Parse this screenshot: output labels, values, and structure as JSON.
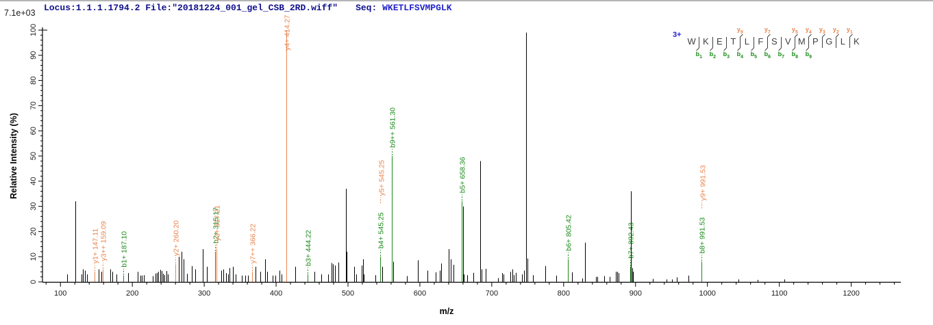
{
  "header": {
    "locus_file": "Locus:1.1.1.1794.2 File:\"20181224_001_gel_CSB_2RD.wiff\"",
    "seq_label": "Seq: ",
    "sequence": "WKETLFSVMPGLK",
    "intensity_scale": "7.1e+03"
  },
  "colors": {
    "y_ion": "#e8864f",
    "b_ion": "#1b8a1b",
    "peak": "#000000",
    "axis": "#000000",
    "header_navy": "#10108c",
    "seq_blue": "#2424cc",
    "charge_blue": "#2020d0"
  },
  "peptide_diagram": {
    "charge": "3+",
    "residues": [
      "W",
      "K",
      "E",
      "T",
      "L",
      "F",
      "S",
      "V",
      "M",
      "P",
      "G",
      "L",
      "K"
    ],
    "y_ions": [
      {
        "boundary": 4,
        "ion": "y9"
      },
      {
        "boundary": 6,
        "ion": "y7"
      },
      {
        "boundary": 8,
        "ion": "y5"
      },
      {
        "boundary": 9,
        "ion": "y4"
      },
      {
        "boundary": 10,
        "ion": "y3"
      },
      {
        "boundary": 11,
        "ion": "y2"
      },
      {
        "boundary": 12,
        "ion": "y1"
      }
    ],
    "b_ions": [
      {
        "boundary": 1,
        "ion": "b1"
      },
      {
        "boundary": 2,
        "ion": "b2"
      },
      {
        "boundary": 3,
        "ion": "b3"
      },
      {
        "boundary": 4,
        "ion": "b4"
      },
      {
        "boundary": 5,
        "ion": "b5"
      },
      {
        "boundary": 6,
        "ion": "b6"
      },
      {
        "boundary": 7,
        "ion": "b7"
      },
      {
        "boundary": 8,
        "ion": "b8"
      },
      {
        "boundary": 9,
        "ion": "b9"
      }
    ]
  },
  "chart_data": {
    "type": "bar",
    "subtype": "ms2-stick-spectrum",
    "xlabel": "m/z",
    "ylabel": "Relative  Intensity  (%)",
    "xlim": [
      75,
      1269
    ],
    "ylim": [
      0,
      100
    ],
    "x_major_ticks": [
      100,
      200,
      300,
      400,
      500,
      600,
      700,
      800,
      900,
      1000,
      1100,
      1200
    ],
    "x_minor_step": 20,
    "y_major_ticks": [
      0,
      10,
      20,
      30,
      40,
      50,
      60,
      70,
      80,
      90,
      100
    ],
    "y_minor_step": 2,
    "peaks": [
      {
        "mz": 109,
        "i": 3
      },
      {
        "mz": 120.3,
        "i": 32
      },
      {
        "mz": 129,
        "i": 3
      },
      {
        "mz": 131.5,
        "i": 5
      },
      {
        "mz": 134,
        "i": 4.5
      },
      {
        "mz": 136.5,
        "i": 3
      },
      {
        "mz": 147.11,
        "i": 4,
        "ion": "y",
        "label": "y1+ 147.11"
      },
      {
        "mz": 153.5,
        "i": 5
      },
      {
        "mz": 156.5,
        "i": 4
      },
      {
        "mz": 159.09,
        "i": 5,
        "ion": "y",
        "label": "y3++ 159.09"
      },
      {
        "mz": 169.5,
        "i": 5
      },
      {
        "mz": 172,
        "i": 4
      },
      {
        "mz": 178,
        "i": 3
      },
      {
        "mz": 187.1,
        "i": 2.5,
        "ion": "b",
        "label": "b1+ 187.10"
      },
      {
        "mz": 194,
        "i": 3.5
      },
      {
        "mz": 207.5,
        "i": 4
      },
      {
        "mz": 211.5,
        "i": 2.5
      },
      {
        "mz": 213.5,
        "i": 2.5
      },
      {
        "mz": 216,
        "i": 2.7
      },
      {
        "mz": 228,
        "i": 2.3
      },
      {
        "mz": 232,
        "i": 3.3
      },
      {
        "mz": 234.5,
        "i": 3.6
      },
      {
        "mz": 236.5,
        "i": 4
      },
      {
        "mz": 239,
        "i": 4.8
      },
      {
        "mz": 241,
        "i": 4.3
      },
      {
        "mz": 243,
        "i": 3.2
      },
      {
        "mz": 245,
        "i": 2.7
      },
      {
        "mz": 247.5,
        "i": 4.3
      },
      {
        "mz": 249.5,
        "i": 3
      },
      {
        "mz": 260.2,
        "i": 7,
        "ion": "y",
        "label": "y2+ 260.20"
      },
      {
        "mz": 265,
        "i": 10
      },
      {
        "mz": 268.7,
        "i": 12
      },
      {
        "mz": 271.3,
        "i": 9
      },
      {
        "mz": 276,
        "i": 3.2
      },
      {
        "mz": 283,
        "i": 6.3
      },
      {
        "mz": 287.5,
        "i": 5
      },
      {
        "mz": 298,
        "i": 13
      },
      {
        "mz": 303.5,
        "i": 6
      },
      {
        "mz": 315.17,
        "i": 12,
        "ion": "b",
        "label": "b2+ 315.17"
      },
      {
        "mz": 317.21,
        "i": 13,
        "ion": "y",
        "label": "y3+ 317.21"
      },
      {
        "mz": 323.8,
        "i": 4.5
      },
      {
        "mz": 327,
        "i": 5
      },
      {
        "mz": 330,
        "i": 3.5
      },
      {
        "mz": 333,
        "i": 3
      },
      {
        "mz": 335.5,
        "i": 5.5
      },
      {
        "mz": 340,
        "i": 6
      },
      {
        "mz": 343.8,
        "i": 3
      },
      {
        "mz": 352,
        "i": 2.5
      },
      {
        "mz": 357,
        "i": 2.5
      },
      {
        "mz": 361,
        "i": 2.5
      },
      {
        "mz": 366.22,
        "i": 4,
        "ion": "y",
        "label": "y7++ 366.22"
      },
      {
        "mz": 371.5,
        "i": 6
      },
      {
        "mz": 378,
        "i": 4
      },
      {
        "mz": 385,
        "i": 9
      },
      {
        "mz": 388,
        "i": 4
      },
      {
        "mz": 395,
        "i": 2.5
      },
      {
        "mz": 399,
        "i": 2.5
      },
      {
        "mz": 404.5,
        "i": 4.5
      },
      {
        "mz": 407.5,
        "i": 3
      },
      {
        "mz": 414.27,
        "i": 100,
        "ion": "y",
        "label": "y4+ 414.27"
      },
      {
        "mz": 426.5,
        "i": 6
      },
      {
        "mz": 444.22,
        "i": 3,
        "ion": "b",
        "label": "b3+ 444.22"
      },
      {
        "mz": 453.5,
        "i": 4
      },
      {
        "mz": 463,
        "i": 3
      },
      {
        "mz": 472.7,
        "i": 3
      },
      {
        "mz": 477,
        "i": 7.5
      },
      {
        "mz": 479.5,
        "i": 7
      },
      {
        "mz": 482,
        "i": 6.5
      },
      {
        "mz": 487,
        "i": 7.7
      },
      {
        "mz": 497.1,
        "i": 37
      },
      {
        "mz": 498.4,
        "i": 12
      },
      {
        "mz": 509,
        "i": 6
      },
      {
        "mz": 511.5,
        "i": 3
      },
      {
        "mz": 519,
        "i": 6.5
      },
      {
        "mz": 520.5,
        "i": 9
      },
      {
        "mz": 522,
        "i": 3
      },
      {
        "mz": 538.5,
        "i": 2.7
      },
      {
        "mz": 545.25,
        "i": 10,
        "ion": "b",
        "label": "b4+ 545.25",
        "label2": {
          "ion": "y",
          "text": "y5+ 545.25"
        }
      },
      {
        "mz": 547.3,
        "i": 6
      },
      {
        "mz": 561.3,
        "i": 50,
        "ion": "b",
        "label": "b9++ 561.30"
      },
      {
        "mz": 562.8,
        "i": 8
      },
      {
        "mz": 582,
        "i": 2.3
      },
      {
        "mz": 597,
        "i": 8.6
      },
      {
        "mz": 611,
        "i": 4.5
      },
      {
        "mz": 622,
        "i": 3.8
      },
      {
        "mz": 627.5,
        "i": 4.5
      },
      {
        "mz": 630,
        "i": 7.3
      },
      {
        "mz": 640,
        "i": 13
      },
      {
        "mz": 642.5,
        "i": 9
      },
      {
        "mz": 646.3,
        "i": 6.8
      },
      {
        "mz": 658.36,
        "i": 32,
        "ion": "b",
        "label": "b5+ 658.36"
      },
      {
        "mz": 659.8,
        "i": 30
      },
      {
        "mz": 661.5,
        "i": 3
      },
      {
        "mz": 665.4,
        "i": 2.7
      },
      {
        "mz": 674,
        "i": 3.6
      },
      {
        "mz": 683.8,
        "i": 48
      },
      {
        "mz": 686,
        "i": 5
      },
      {
        "mz": 691.7,
        "i": 5.2
      },
      {
        "mz": 709,
        "i": 1.5
      },
      {
        "mz": 714.5,
        "i": 3.5
      },
      {
        "mz": 716.5,
        "i": 3
      },
      {
        "mz": 725.7,
        "i": 4
      },
      {
        "mz": 728.4,
        "i": 5
      },
      {
        "mz": 730.6,
        "i": 2.7
      },
      {
        "mz": 733,
        "i": 3.6
      },
      {
        "mz": 742.5,
        "i": 3
      },
      {
        "mz": 744.8,
        "i": 4.5
      },
      {
        "mz": 747.6,
        "i": 99
      },
      {
        "mz": 749.6,
        "i": 9.3
      },
      {
        "mz": 757.4,
        "i": 2.7
      },
      {
        "mz": 774.9,
        "i": 6.3
      },
      {
        "mz": 790,
        "i": 2.5
      },
      {
        "mz": 805.42,
        "i": 9,
        "ion": "b",
        "label": "b6+ 805.42"
      },
      {
        "mz": 812,
        "i": 3.8
      },
      {
        "mz": 825.7,
        "i": 1.4
      },
      {
        "mz": 829.8,
        "i": 15.6
      },
      {
        "mz": 844.5,
        "i": 2
      },
      {
        "mz": 846.5,
        "i": 2
      },
      {
        "mz": 856,
        "i": 2.3
      },
      {
        "mz": 864,
        "i": 2
      },
      {
        "mz": 873,
        "i": 4
      },
      {
        "mz": 874.5,
        "i": 4
      },
      {
        "mz": 876,
        "i": 3.5
      },
      {
        "mz": 892.43,
        "i": 6,
        "ion": "b",
        "label": "b7+ 892.43"
      },
      {
        "mz": 893.8,
        "i": 36
      },
      {
        "mz": 895.3,
        "i": 5.5
      },
      {
        "mz": 896.8,
        "i": 4
      },
      {
        "mz": 924,
        "i": 1.2
      },
      {
        "mz": 943,
        "i": 1
      },
      {
        "mz": 951,
        "i": 1
      },
      {
        "mz": 957.5,
        "i": 1.8
      },
      {
        "mz": 974,
        "i": 2.5
      },
      {
        "mz": 991.53,
        "i": 8,
        "ion": "b",
        "label": "b8+ 991.53",
        "label2": {
          "ion": "y",
          "text": "y9+ 991.53"
        }
      },
      {
        "mz": 1043,
        "i": 1
      },
      {
        "mz": 1070,
        "i": 0.8
      },
      {
        "mz": 1107,
        "i": 1
      }
    ]
  }
}
